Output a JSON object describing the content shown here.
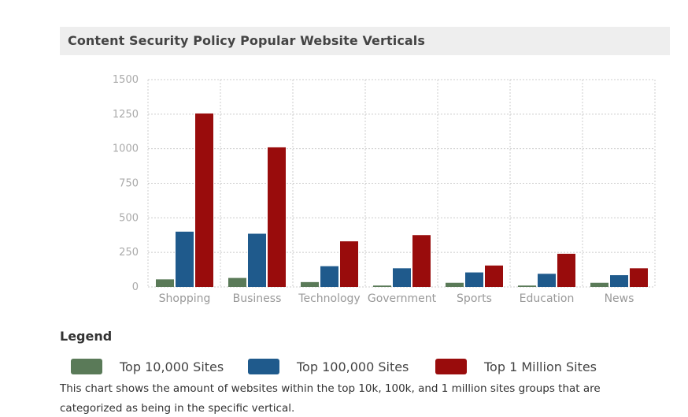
{
  "title": "Content Security Policy Popular Website Verticals",
  "legend_title": "Legend",
  "description": "This chart shows the amount of websites within the top 10k, 100k, and 1 million sites groups that are categorized as being in the specific vertical.",
  "chart_data": {
    "type": "bar",
    "title": "Content Security Policy Popular Website Verticals",
    "xlabel": "",
    "ylabel": "",
    "ylim": [
      0,
      1500
    ],
    "yticks": [
      0,
      250,
      500,
      750,
      1000,
      1250,
      1500
    ],
    "grid": true,
    "legend_position": "bottom",
    "categories": [
      "Shopping",
      "Business",
      "Technology",
      "Government",
      "Sports",
      "Education",
      "News"
    ],
    "series": [
      {
        "name": "Top 10,000 Sites",
        "color": "#5a7a58",
        "values": [
          55,
          65,
          35,
          10,
          30,
          10,
          30
        ]
      },
      {
        "name": "Top 100,000 Sites",
        "color": "#1f5a8c",
        "values": [
          400,
          385,
          150,
          135,
          105,
          95,
          85
        ]
      },
      {
        "name": "Top 1 Million Sites",
        "color": "#990c0c",
        "values": [
          1255,
          1010,
          330,
          375,
          155,
          240,
          135
        ]
      }
    ]
  }
}
